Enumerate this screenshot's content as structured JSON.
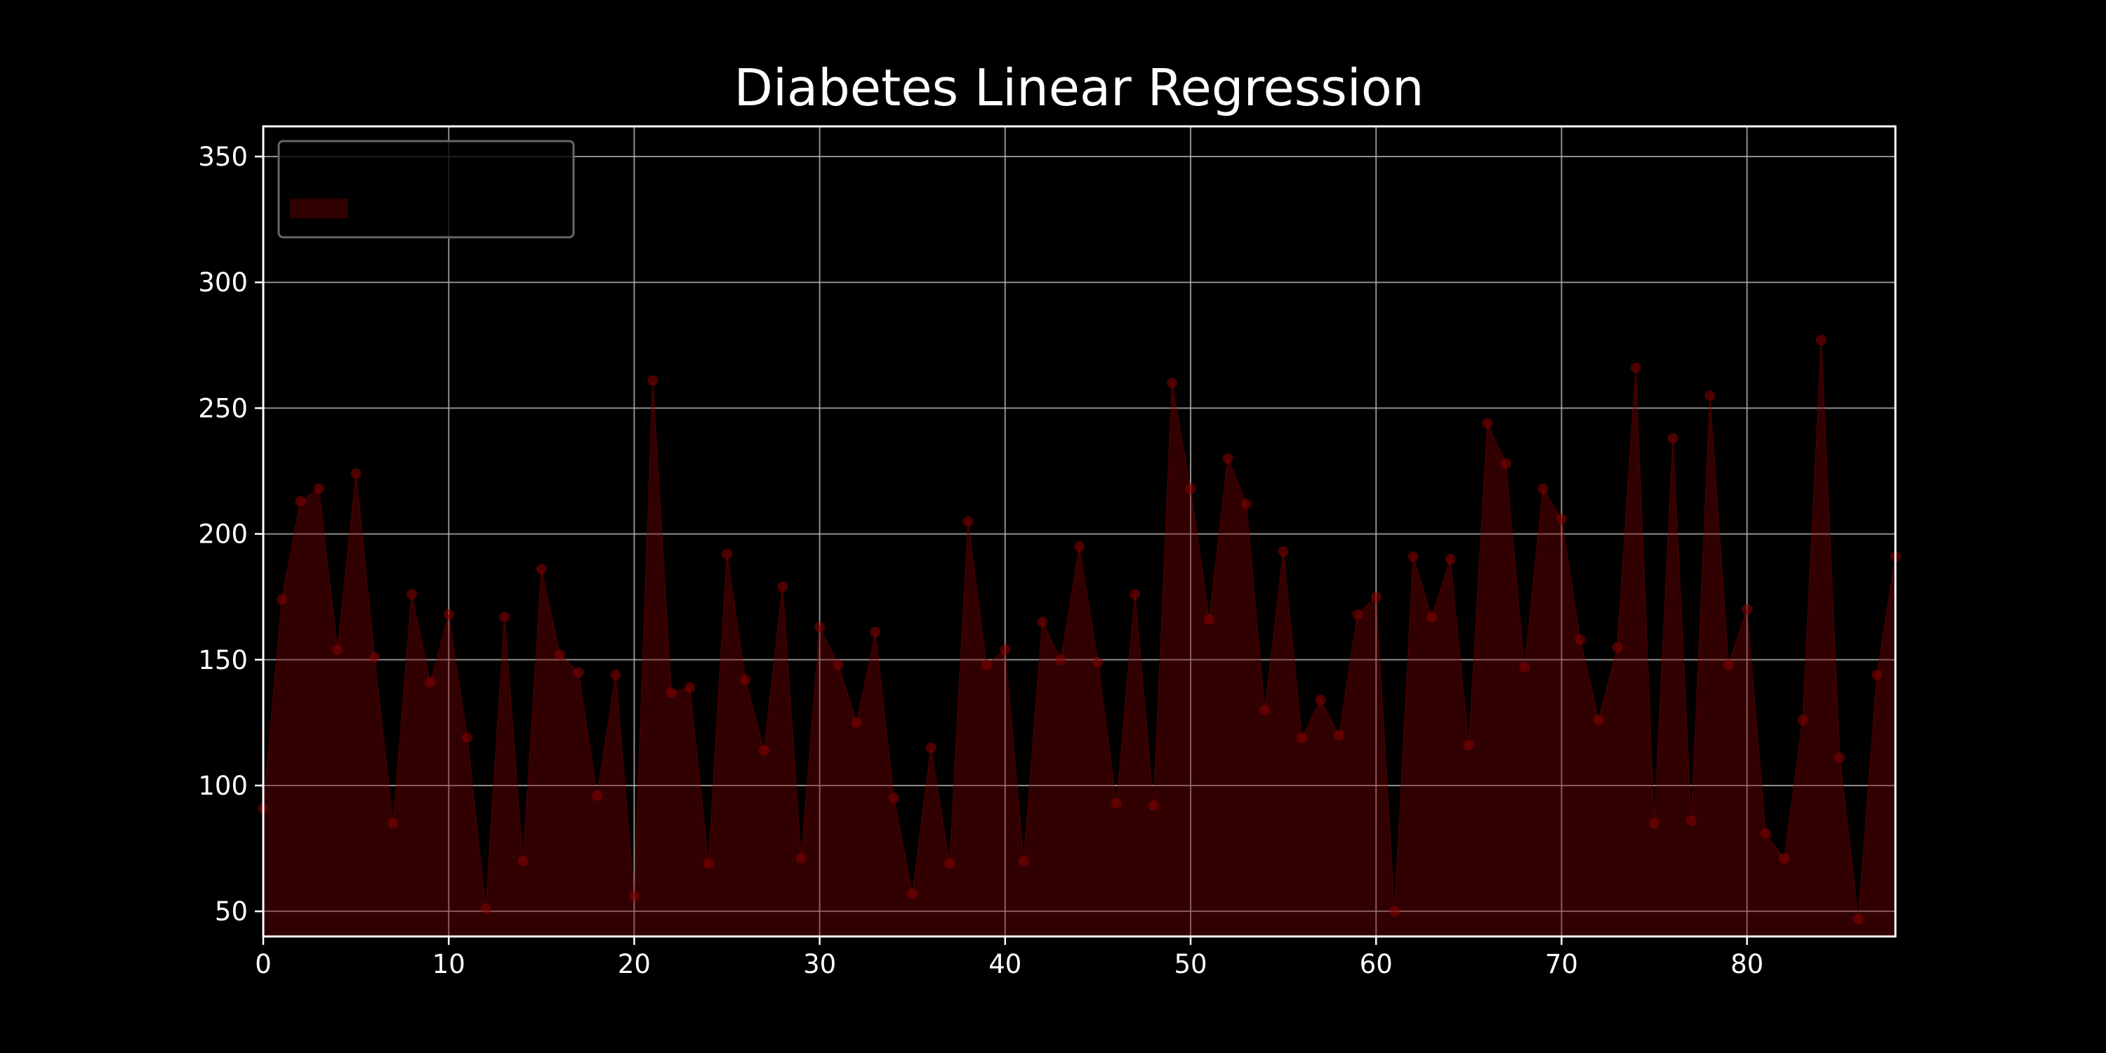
{
  "chart_data": {
    "type": "area",
    "title": "Diabetes Linear Regression",
    "xlabel": "",
    "ylabel": "",
    "xlim": [
      0,
      88
    ],
    "ylim": [
      40,
      362
    ],
    "xticks": [
      0,
      10,
      20,
      30,
      40,
      50,
      60,
      70,
      80
    ],
    "yticks": [
      50,
      100,
      150,
      200,
      250,
      300,
      350
    ],
    "grid": true,
    "legend_position": "upper-left",
    "colors": {
      "background": "#000000",
      "axes": "#ffffff",
      "grid": "#b0b0b0",
      "fill": "#8b0000",
      "line": "#8b0000",
      "marker": "#8b0000",
      "legend_border": "#666666"
    },
    "series": [
      {
        "values": [
          91,
          174,
          213,
          218,
          154,
          224,
          151,
          85,
          176,
          141,
          168,
          119,
          51,
          167,
          70,
          186,
          152,
          145,
          96,
          144,
          56,
          261,
          137,
          139,
          69,
          192,
          142,
          114,
          179,
          71,
          163,
          148,
          125,
          161,
          95,
          57,
          115,
          69,
          205,
          148,
          154,
          70,
          165,
          150,
          195,
          149,
          93,
          176,
          92,
          260,
          218,
          166,
          230,
          212,
          130,
          193,
          119,
          134,
          120,
          168,
          175,
          50,
          191,
          167,
          190,
          116,
          244,
          228,
          147,
          218,
          206,
          158,
          126,
          155,
          266,
          85,
          238,
          86,
          255,
          148,
          170,
          81,
          71,
          126,
          277,
          111,
          47,
          144,
          191
        ]
      }
    ]
  }
}
